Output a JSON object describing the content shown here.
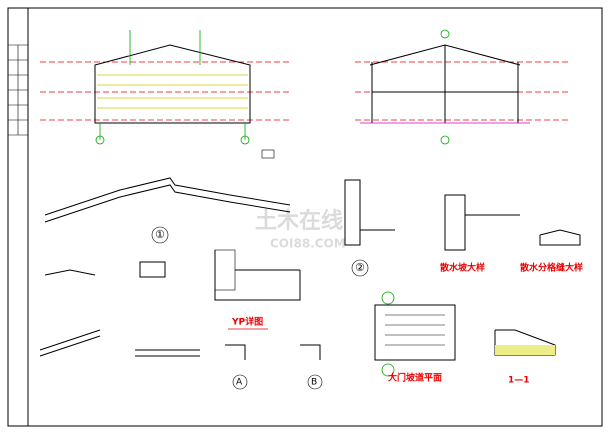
{
  "drawing": {
    "marks": {
      "detail_1": "①",
      "detail_2": "②",
      "axis_a": "A",
      "axis_b": "B"
    },
    "captions": [
      "YP详图",
      "散水坡大样",
      "散水分格缝大样",
      "大门坡道平面",
      "1—1"
    ],
    "watermark": {
      "text": "土木在线",
      "sub": "COI88.COM"
    }
  }
}
